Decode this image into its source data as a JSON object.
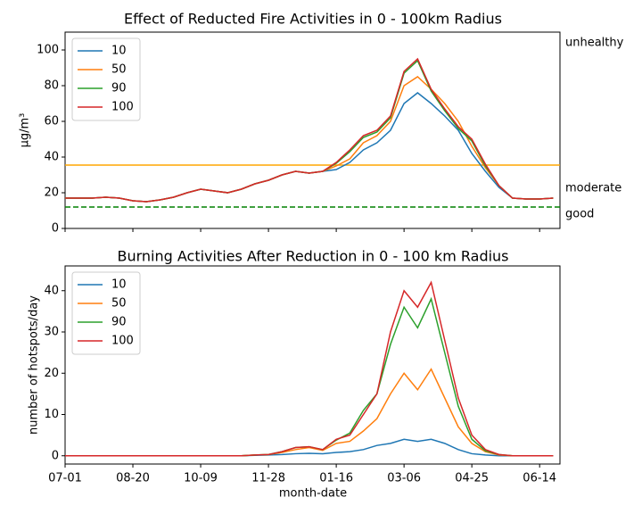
{
  "chart_data": [
    {
      "type": "line",
      "title": "Effect of Reducted Fire Activities in 0 - 100km Radius",
      "ylabel": "μg/m³",
      "x": [
        "07-01",
        "07-11",
        "07-21",
        "07-31",
        "08-10",
        "08-20",
        "08-30",
        "09-09",
        "09-19",
        "09-29",
        "10-09",
        "10-19",
        "10-29",
        "11-08",
        "11-18",
        "11-28",
        "12-08",
        "12-18",
        "12-28",
        "01-06",
        "01-16",
        "01-26",
        "02-05",
        "02-15",
        "02-25",
        "03-06",
        "03-16",
        "03-26",
        "04-05",
        "04-15",
        "04-25",
        "05-05",
        "05-15",
        "05-25",
        "06-04",
        "06-14",
        "06-24"
      ],
      "ylim": [
        0,
        110
      ],
      "yticks": [
        0,
        20,
        40,
        60,
        80,
        100
      ],
      "legend": "upper left",
      "hlines": [
        {
          "value": 35.5,
          "color": "#ffa500",
          "style": "solid"
        },
        {
          "value": 12,
          "color": "#008000",
          "style": "dashed"
        }
      ],
      "annotations": [
        {
          "text": "unhealthy",
          "y": 104
        },
        {
          "text": "moderate",
          "y": 22.5
        },
        {
          "text": "good",
          "y": 8
        }
      ],
      "series": [
        {
          "name": "10",
          "color": "#1f77b4",
          "values": [
            17,
            17,
            17,
            17.5,
            17,
            15.5,
            15,
            16,
            17.5,
            20,
            22,
            21,
            20,
            22,
            25,
            27,
            30,
            32,
            31,
            32,
            33,
            37,
            44,
            48,
            55,
            70,
            76,
            70,
            63,
            55,
            42,
            32,
            23,
            17,
            16.5,
            16.5,
            17
          ]
        },
        {
          "name": "50",
          "color": "#ff7f0e",
          "values": [
            17,
            17,
            17,
            17.5,
            17,
            15.5,
            15,
            16,
            17.5,
            20,
            22,
            21,
            20,
            22,
            25,
            27,
            30,
            32,
            31,
            32,
            35,
            39,
            48,
            52,
            60,
            80,
            85,
            78,
            70,
            60,
            46,
            34,
            24,
            17,
            16.5,
            16.5,
            17
          ]
        },
        {
          "name": "90",
          "color": "#2ca02c",
          "values": [
            17,
            17,
            17,
            17.5,
            17,
            15.5,
            15,
            16,
            17.5,
            20,
            22,
            21,
            20,
            22,
            25,
            27,
            30,
            32,
            31,
            32,
            36.5,
            43,
            51,
            54,
            62,
            87,
            94,
            77,
            66,
            56,
            49,
            35,
            24,
            17,
            16.5,
            16.5,
            17
          ]
        },
        {
          "name": "100",
          "color": "#d62728",
          "values": [
            17,
            17,
            17,
            17.5,
            17,
            15.5,
            15,
            16,
            17.5,
            20,
            22,
            21,
            20,
            22,
            25,
            27,
            30,
            32,
            31,
            32,
            37,
            44,
            52,
            55,
            63,
            88,
            95,
            78,
            67,
            57,
            50,
            36,
            24,
            17,
            16.5,
            16.5,
            17
          ]
        }
      ]
    },
    {
      "type": "line",
      "title": "Burning Activities After Reduction in 0 - 100 km Radius",
      "xlabel": "month-date",
      "ylabel": "number of hotspots/day",
      "x": [
        "07-01",
        "07-11",
        "07-21",
        "07-31",
        "08-10",
        "08-20",
        "08-30",
        "09-09",
        "09-19",
        "09-29",
        "10-09",
        "10-19",
        "10-29",
        "11-08",
        "11-18",
        "11-28",
        "12-08",
        "12-18",
        "12-28",
        "01-06",
        "01-16",
        "01-26",
        "02-05",
        "02-15",
        "02-25",
        "03-06",
        "03-16",
        "03-26",
        "04-05",
        "04-15",
        "04-25",
        "05-05",
        "05-15",
        "05-25",
        "06-04",
        "06-14",
        "06-24"
      ],
      "xticks": [
        "07-01",
        "08-20",
        "10-09",
        "11-28",
        "01-16",
        "03-06",
        "04-25",
        "06-14"
      ],
      "ylim": [
        -2,
        46
      ],
      "yticks": [
        0,
        10,
        20,
        30,
        40
      ],
      "legend": "upper left",
      "series": [
        {
          "name": "10",
          "color": "#1f77b4",
          "values": [
            0,
            0,
            0,
            0,
            0,
            0,
            0,
            0,
            0,
            0,
            0,
            0,
            0,
            0,
            0.1,
            0.2,
            0.3,
            0.5,
            0.6,
            0.5,
            0.8,
            1,
            1.5,
            2.5,
            3,
            4,
            3.5,
            4,
            3,
            1.5,
            0.5,
            0.2,
            0,
            0,
            0,
            0,
            0
          ]
        },
        {
          "name": "50",
          "color": "#ff7f0e",
          "values": [
            0,
            0,
            0,
            0,
            0,
            0,
            0,
            0,
            0,
            0,
            0,
            0,
            0,
            0,
            0.2,
            0.3,
            0.8,
            1.5,
            2,
            1.3,
            3,
            3.5,
            6,
            9,
            15,
            20,
            16,
            21,
            14,
            7,
            3,
            1,
            0.2,
            0,
            0,
            0,
            0
          ]
        },
        {
          "name": "90",
          "color": "#2ca02c",
          "values": [
            0,
            0,
            0,
            0,
            0,
            0,
            0,
            0,
            0,
            0,
            0,
            0,
            0,
            0,
            0.2,
            0.3,
            1,
            2,
            2.2,
            1.5,
            3.8,
            5.5,
            11,
            15,
            27,
            36,
            31,
            38,
            25,
            12,
            4,
            1.2,
            0.3,
            0,
            0,
            0,
            0
          ]
        },
        {
          "name": "100",
          "color": "#d62728",
          "values": [
            0,
            0,
            0,
            0,
            0,
            0,
            0,
            0,
            0,
            0,
            0,
            0,
            0,
            0,
            0.2,
            0.3,
            1,
            2,
            2.2,
            1.5,
            4,
            5,
            10,
            15,
            30,
            40,
            36,
            42,
            28,
            14,
            5,
            1.5,
            0.3,
            0,
            0,
            0,
            0
          ]
        }
      ]
    }
  ]
}
